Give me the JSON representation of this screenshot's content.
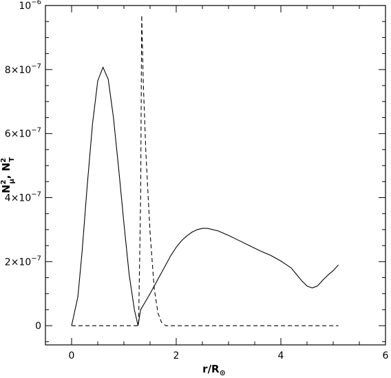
{
  "chart_data": {
    "type": "line",
    "title": "",
    "xlabel": "r/R",
    "xlabel_sub": "⊙",
    "ylabel_parts": {
      "n1": "N",
      "s1": "μ",
      "p1": "2",
      "sep": ", ",
      "n2": "N",
      "s2": "T",
      "p2": "2"
    },
    "xlim": [
      -0.5,
      6
    ],
    "ylim": [
      -6e-08,
      1e-06
    ],
    "x_ticks": [
      0,
      2,
      4,
      6
    ],
    "x_tick_labels": [
      "0",
      "2",
      "4",
      "6"
    ],
    "y_ticks": [
      0,
      2e-07,
      4e-07,
      6e-07,
      8e-07,
      1e-06
    ],
    "y_tick_labels": [
      {
        "mant": "0",
        "exp": ""
      },
      {
        "mant": "2×10",
        "exp": "−7"
      },
      {
        "mant": "4×10",
        "exp": "−7"
      },
      {
        "mant": "6×10",
        "exp": "−7"
      },
      {
        "mant": "8×10",
        "exp": "−7"
      },
      {
        "mant": "10",
        "exp": "−6"
      }
    ],
    "grid": false,
    "series": [
      {
        "style": "solid",
        "color": "#000000",
        "x": [
          0.0,
          0.12,
          0.2,
          0.3,
          0.4,
          0.5,
          0.6,
          0.7,
          0.8,
          0.9,
          1.0,
          1.1,
          1.2,
          1.27,
          1.32,
          1.4,
          1.5,
          1.6,
          1.7,
          1.8,
          1.9,
          2.0,
          2.1,
          2.2,
          2.3,
          2.4,
          2.5,
          2.6,
          2.8,
          3.0,
          3.2,
          3.4,
          3.6,
          3.8,
          4.0,
          4.2,
          4.3,
          4.4,
          4.5,
          4.6,
          4.7,
          4.8,
          4.9,
          5.0,
          5.1
        ],
        "y": [
          0.0,
          9e-08,
          2.3e-07,
          4.4e-07,
          6.3e-07,
          7.65e-07,
          8.07e-07,
          7.7e-07,
          6.5e-07,
          4.9e-07,
          3.2e-07,
          1.6e-07,
          5e-08,
          0.0,
          5e-08,
          7.2e-08,
          1e-07,
          1.3e-07,
          1.6e-07,
          1.9e-07,
          2.2e-07,
          2.45e-07,
          2.65e-07,
          2.8e-07,
          2.92e-07,
          3e-07,
          3.04e-07,
          3.04e-07,
          2.96e-07,
          2.82e-07,
          2.66e-07,
          2.5e-07,
          2.34e-07,
          2.2e-07,
          2.02e-07,
          1.8e-07,
          1.6e-07,
          1.4e-07,
          1.24e-07,
          1.18e-07,
          1.24e-07,
          1.42e-07,
          1.58e-07,
          1.72e-07,
          1.9e-07
        ]
      },
      {
        "style": "dashed",
        "color": "#000000",
        "x": [
          0.0,
          1.0,
          1.28,
          1.32,
          1.34,
          1.37,
          1.42,
          1.5,
          1.58,
          1.65,
          1.72,
          1.8,
          2.0,
          3.0,
          4.0,
          5.1
        ],
        "y": [
          0.0,
          0.0,
          0.0,
          4e-07,
          9.7e-07,
          7.6e-07,
          5.4e-07,
          2.9e-07,
          1.15e-07,
          4e-08,
          1e-08,
          0.0,
          0.0,
          0.0,
          0.0,
          0.0
        ]
      }
    ]
  }
}
